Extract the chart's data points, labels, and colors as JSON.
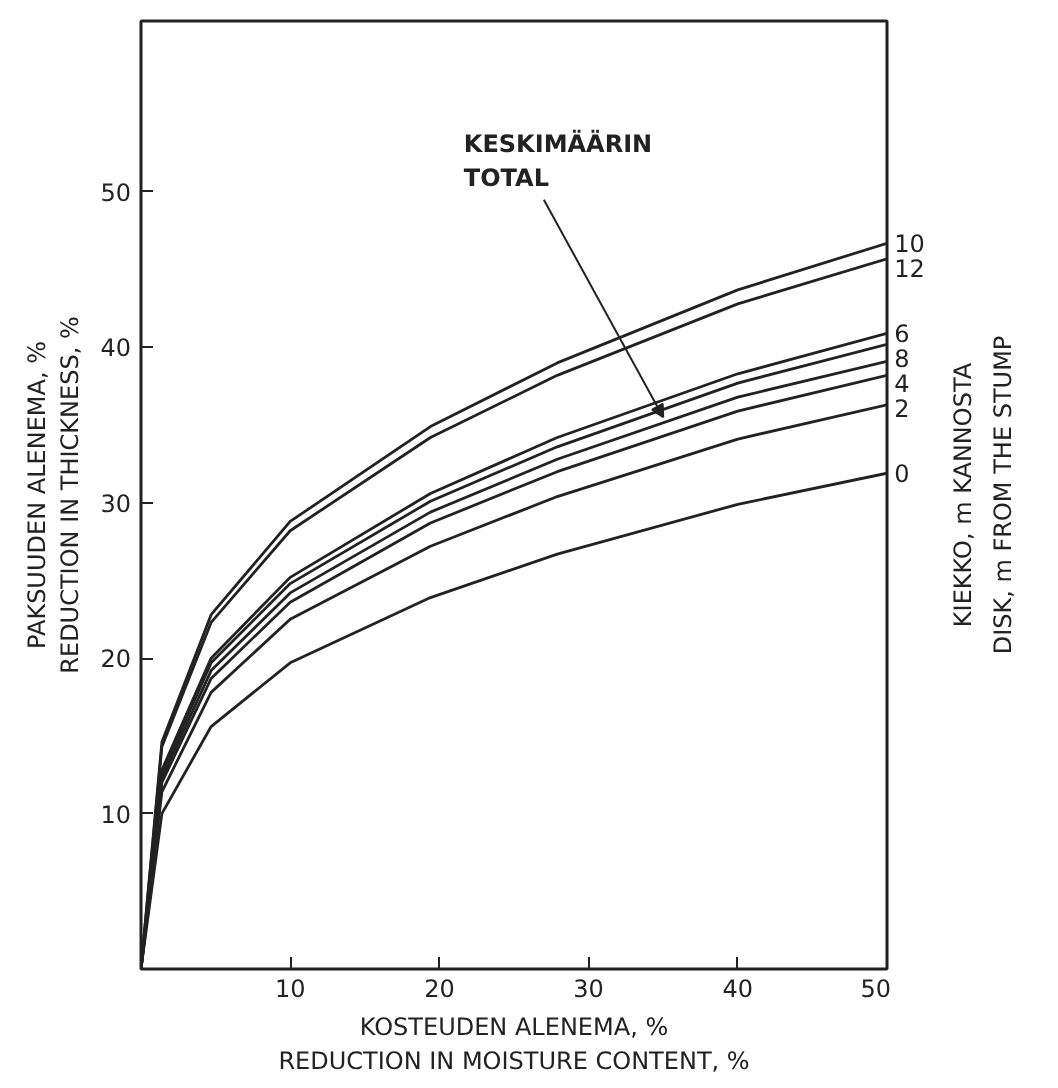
{
  "chart_data": {
    "type": "line",
    "xlabel": "KOSTEUDEN ALENEMA, %\nREDUCTION IN MOISTURE CONTENT, %",
    "ylabel": "PAKSUUDEN ALENEMA, %\nREDUCTION IN THICKNESS, %",
    "legend_title": "KIEKKO, m KANNOSTA\nDISK, m FROM THE STUMP",
    "x": [
      0,
      1.4,
      4.7,
      10,
      19.4,
      27.9,
      40,
      50
    ],
    "series": [
      {
        "name": "10",
        "color": "#222222",
        "values": [
          0,
          14.6,
          22.8,
          28.8,
          34.9,
          39.0,
          43.7,
          46.7
        ]
      },
      {
        "name": "12",
        "color": "#222222",
        "values": [
          0,
          14.3,
          22.3,
          28.2,
          34.2,
          38.2,
          42.8,
          45.7
        ]
      },
      {
        "name": "6",
        "color": "#222222",
        "values": [
          0,
          12.8,
          20.0,
          25.2,
          30.6,
          34.2,
          38.3,
          40.9
        ]
      },
      {
        "name": "8",
        "color": "#222222",
        "values": [
          0,
          12.6,
          19.7,
          24.8,
          30.1,
          33.6,
          37.7,
          40.2
        ]
      },
      {
        "color": "#222222",
        "values": [
          0,
          12.3,
          19.2,
          24.2,
          29.4,
          32.8,
          36.8,
          39.1
        ]
      },
      {
        "name": "4",
        "color": "#222222",
        "values": [
          0,
          12.0,
          18.7,
          23.6,
          28.7,
          32.0,
          35.9,
          38.2
        ]
      },
      {
        "name": "2",
        "color": "#222222",
        "values": [
          0,
          11.4,
          17.8,
          22.5,
          27.2,
          30.4,
          34.1,
          36.3
        ]
      },
      {
        "name": "0",
        "color": "#222222",
        "values": [
          0,
          10,
          15.6,
          19.7,
          23.9,
          26.7,
          29.9,
          31.9
        ]
      }
    ],
    "annotations": [
      {
        "text": "KESKIMÄÄRIN\nTOTAL",
        "x": 35,
        "y": 35.5
      }
    ],
    "xlim": [
      0,
      50
    ],
    "ylim": [
      0,
      61
    ],
    "xticks": [
      10,
      20,
      30,
      40,
      50
    ],
    "yticks": [
      10,
      20,
      30,
      40,
      50
    ],
    "grid": false,
    "marker": "none",
    "line_style": "solid"
  }
}
